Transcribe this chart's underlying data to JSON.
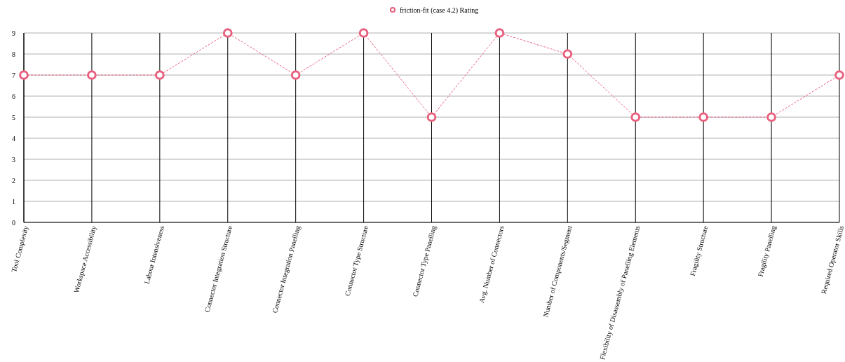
{
  "chart_data": {
    "type": "line",
    "categories": [
      "Tool Complexity",
      "Workspace Accessibility",
      "Labour Intensiveness",
      "Connector Integration Structure",
      "Connector Integration Panelling",
      "Connector Type Structure",
      "Connector Type Panelling",
      "Avg. Number of Connectors",
      "Number of Components/Segment",
      "Flexibility of Disassembly of Panelling Elements",
      "Fragility Structure",
      "Fragility Panelling",
      "Required Operator Skills"
    ],
    "series": [
      {
        "name": "friction-fit (case 4.2) Rating",
        "color": "#e8607e",
        "values": [
          7,
          7,
          7,
          9,
          7,
          9,
          5,
          9,
          8,
          5,
          5,
          5,
          7
        ]
      }
    ],
    "ylim": [
      0,
      9
    ],
    "yticks": [
      0,
      1,
      2,
      3,
      4,
      5,
      6,
      7,
      8,
      9
    ],
    "grid": true,
    "legend": "top",
    "marker": "circle",
    "line_style": "dashed"
  }
}
